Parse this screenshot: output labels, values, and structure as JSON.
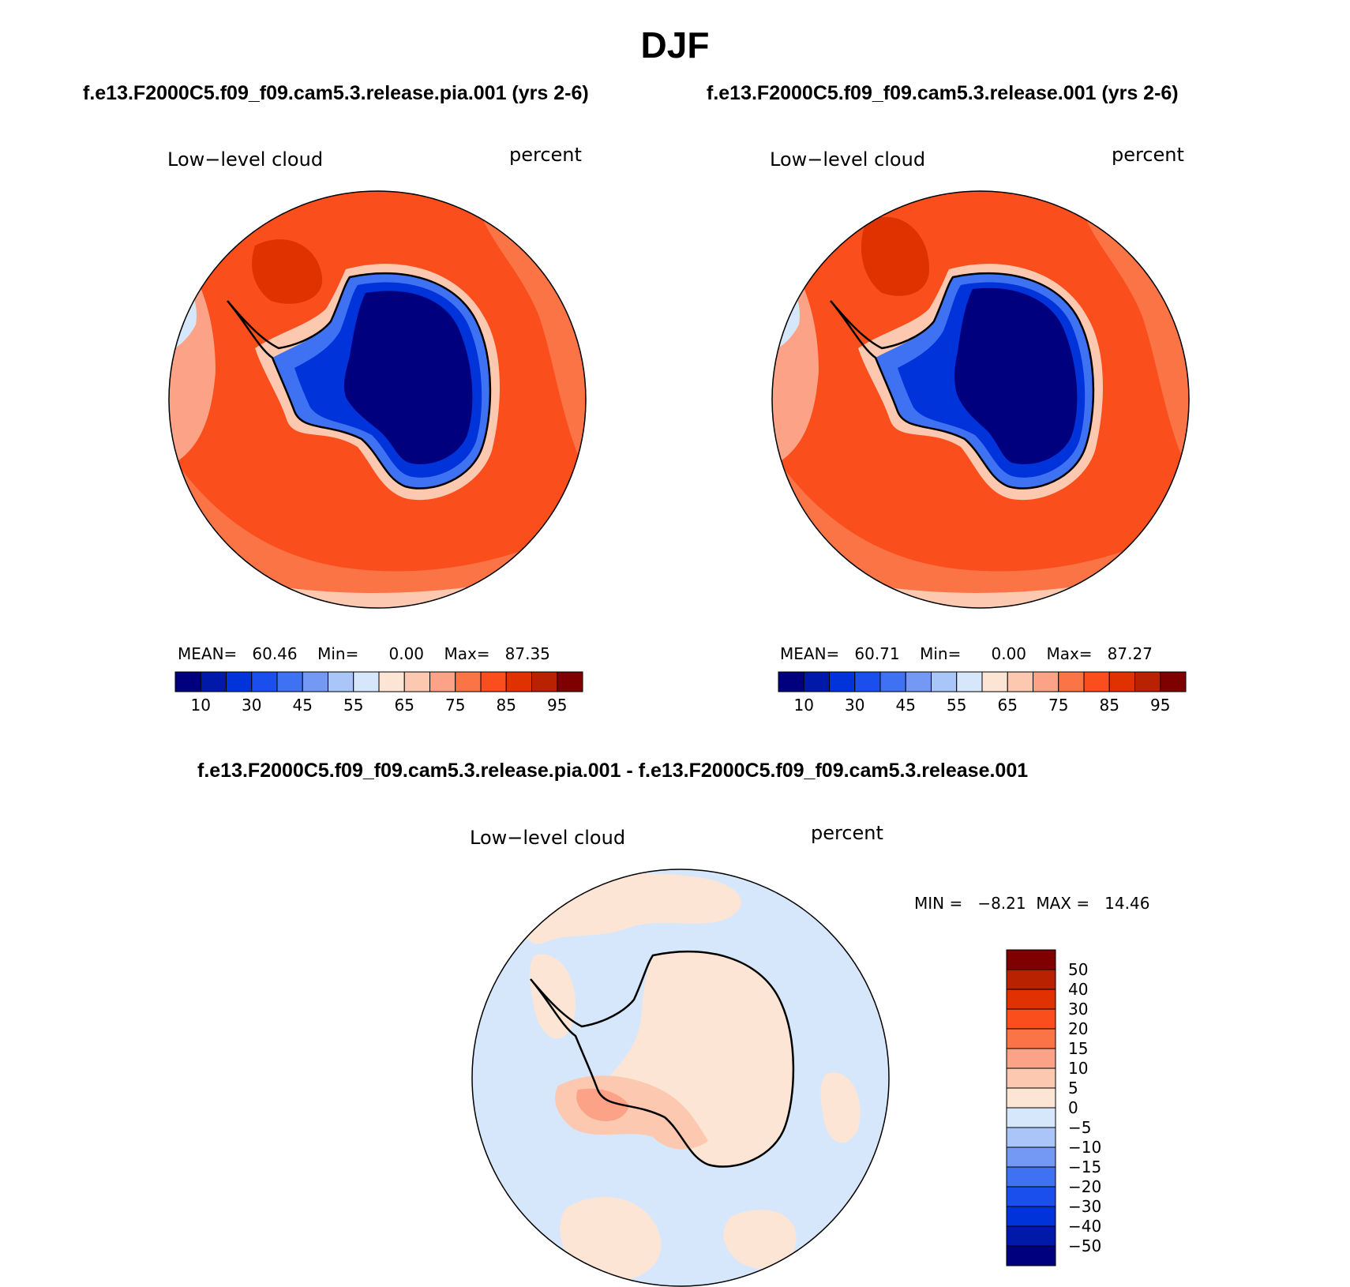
{
  "figure": {
    "title": "DJF"
  },
  "panels": [
    {
      "case_title": "f.e13.F2000C5.f09_f09.cam5.3.release.pia.001 (yrs 2-6)",
      "variable": "Low−level cloud",
      "units": "percent",
      "stats": {
        "mean_label": "MEAN=",
        "mean": "60.46",
        "min_label": "Min=",
        "min": "0.00",
        "max_label": "Max=",
        "max": "87.35"
      }
    },
    {
      "case_title": "f.e13.F2000C5.f09_f09.cam5.3.release.001 (yrs 2-6)",
      "variable": "Low−level cloud",
      "units": "percent",
      "stats": {
        "mean_label": "MEAN=",
        "mean": "60.71",
        "min_label": "Min=",
        "min": "0.00",
        "max_label": "Max=",
        "max": "87.27"
      }
    }
  ],
  "colorbar_abs": {
    "colors": [
      "#00007f",
      "#0019a8",
      "#0033d9",
      "#1a4fee",
      "#3e72f3",
      "#7399f5",
      "#aac6f8",
      "#d6e7fb",
      "#fde5d5",
      "#fcc8b0",
      "#fca286",
      "#fb7446",
      "#fb4e1d",
      "#e03200",
      "#b82200",
      "#7f0000"
    ],
    "tick_labels": [
      "10",
      "30",
      "45",
      "55",
      "65",
      "75",
      "85",
      "95"
    ]
  },
  "diff_panel": {
    "case_title": "f.e13.F2000C5.f09_f09.cam5.3.release.pia.001 - f.e13.F2000C5.f09_f09.cam5.3.release.001",
    "variable": "Low−level cloud",
    "units": "percent",
    "stats": {
      "min_label": "MIN =",
      "min": "−8.21",
      "max_label": "MAX =",
      "max": "14.46"
    }
  },
  "colorbar_diff": {
    "colors_top_to_bottom": [
      "#7f0000",
      "#b82200",
      "#e03200",
      "#fb4e1d",
      "#fb7446",
      "#fca286",
      "#fcc8b0",
      "#fde5d5",
      "#d6e7fb",
      "#aac6f8",
      "#7399f5",
      "#3e72f3",
      "#1a4fee",
      "#0033d9",
      "#0019a8",
      "#00007f"
    ],
    "tick_labels": [
      "50",
      "40",
      "30",
      "20",
      "15",
      "10",
      "5",
      "0",
      "−5",
      "−10",
      "−15",
      "−20",
      "−30",
      "−40",
      "−50"
    ]
  },
  "colors": {
    "ocean_high": "#fb4e1d",
    "ocean_mid": "#fb7446",
    "ocean_low": "#fca286",
    "ocean_lowest": "#fcc8b0",
    "land_dark": "#00007f",
    "land_mid": "#0033d9",
    "land_light": "#3e72f3",
    "diff_neg": "#d6e7fb",
    "diff_pos": "#fde5d5"
  }
}
